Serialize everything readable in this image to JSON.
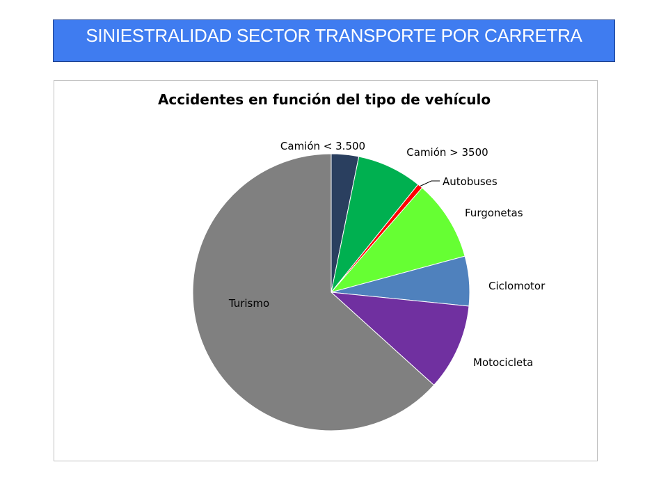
{
  "header": {
    "title": "SINIESTRALIDAD SECTOR TRANSPORTE  POR CARRETRA"
  },
  "chart_data": {
    "type": "pie",
    "title": "Accidentes en función del tipo de vehículo",
    "start_angle_deg": 0,
    "direction": "clockwise",
    "labels_position": "outside",
    "legend": "none",
    "slices": [
      {
        "label": "Camión < 3.500",
        "value": 3.2,
        "color": "#2a3f5f"
      },
      {
        "label": "Camión > 3500",
        "value": 7.6,
        "color": "#00b050"
      },
      {
        "label": "Autobuses",
        "value": 0.6,
        "color": "#ff0000"
      },
      {
        "label": "Furgonetas",
        "value": 9.4,
        "color": "#66ff33"
      },
      {
        "label": "Ciclomotor",
        "value": 5.8,
        "color": "#4f81bd"
      },
      {
        "label": "Motocicleta",
        "value": 10.1,
        "color": "#7030a0"
      },
      {
        "label": "Turismo",
        "value": 63.3,
        "color": "#808080"
      }
    ]
  }
}
